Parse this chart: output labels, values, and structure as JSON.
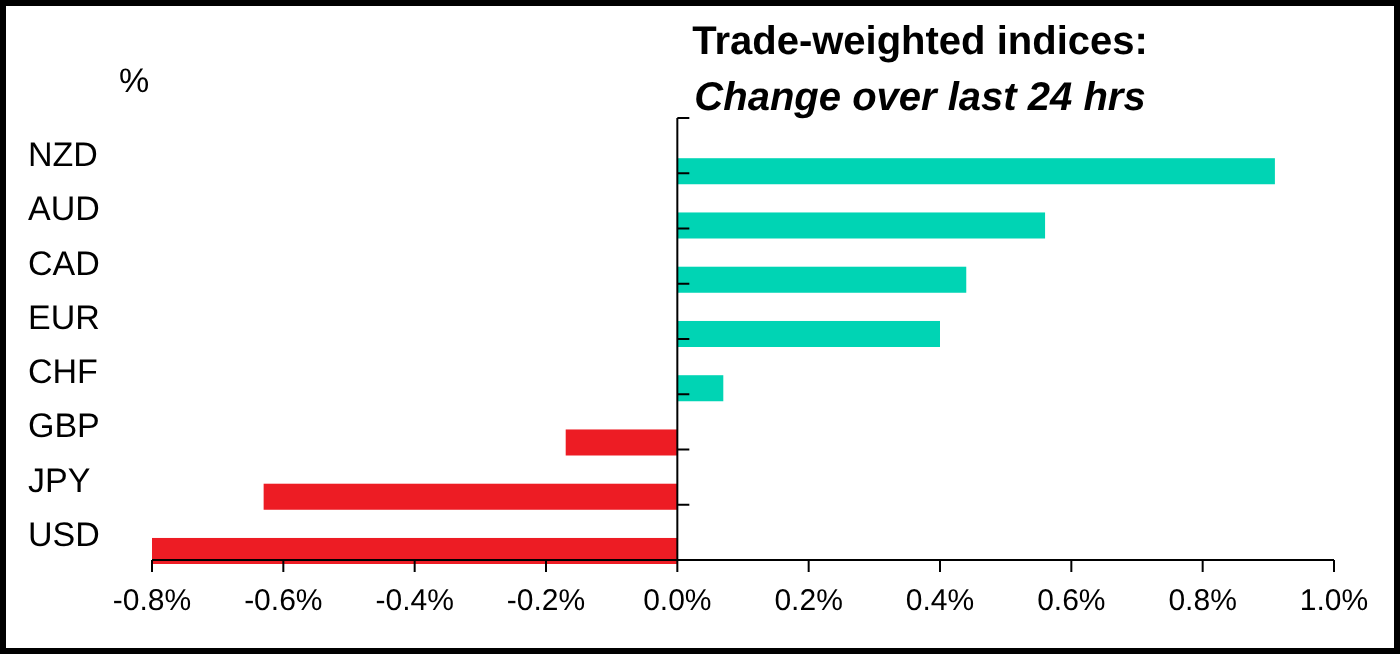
{
  "chart_data": {
    "type": "bar",
    "orientation": "horizontal",
    "title": "Trade-weighted indices:",
    "subtitle": "Change over last 24 hrs",
    "ylabel": "%",
    "categories": [
      "NZD",
      "AUD",
      "CAD",
      "EUR",
      "CHF",
      "GBP",
      "JPY",
      "USD"
    ],
    "values": [
      0.91,
      0.56,
      0.44,
      0.4,
      0.07,
      -0.17,
      -0.63,
      -0.8
    ],
    "colors": [
      "#00d4b4",
      "#00d4b4",
      "#00d4b4",
      "#00d4b4",
      "#00d4b4",
      "#ed1c24",
      "#ed1c24",
      "#ed1c24"
    ],
    "xlim": [
      -0.8,
      1.0
    ],
    "xticks": [
      {
        "value": -0.8,
        "label": "-0.8%"
      },
      {
        "value": -0.6,
        "label": "-0.6%"
      },
      {
        "value": -0.4,
        "label": "-0.4%"
      },
      {
        "value": -0.2,
        "label": "-0.2%"
      },
      {
        "value": 0,
        "label": "0.0%"
      },
      {
        "value": 0.2,
        "label": "0.2%"
      },
      {
        "value": 0.4,
        "label": "0.4%"
      },
      {
        "value": 0.6,
        "label": "0.6%"
      },
      {
        "value": 0.8,
        "label": "0.8%"
      },
      {
        "value": 1.0,
        "label": "1.0%"
      }
    ],
    "line_style": "solid"
  }
}
